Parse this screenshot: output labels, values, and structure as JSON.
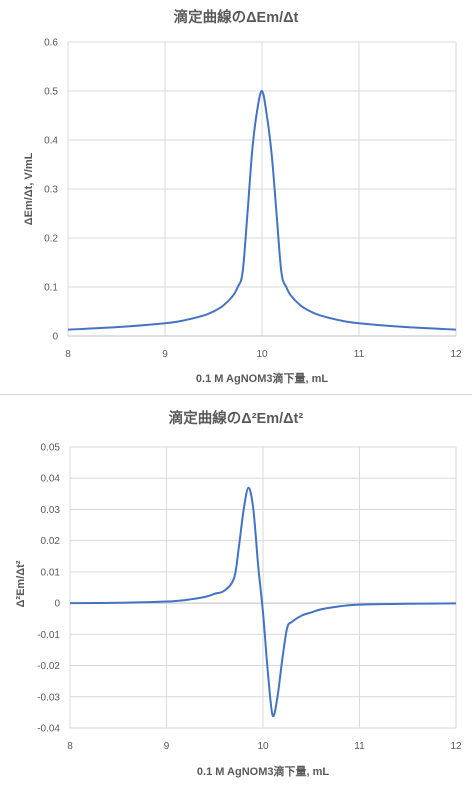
{
  "chart_data": [
    {
      "type": "line",
      "title": "滴定曲線のΔEm/Δt",
      "xlabel": "0.1 M AgNOM3滴下量, mL",
      "ylabel": "ΔEm/Δt, V/mL",
      "xlim": [
        8,
        12
      ],
      "ylim": [
        0,
        0.6
      ],
      "xticks": [
        "8",
        "9",
        "10",
        "11",
        "12"
      ],
      "yticks": [
        "0",
        "0.1",
        "0.2",
        "0.3",
        "0.4",
        "0.5",
        "0.6"
      ],
      "grid": true,
      "series": [
        {
          "color": "#4472c4",
          "x": [
            8.0,
            8.5,
            9.0,
            9.2,
            9.4,
            9.5,
            9.6,
            9.7,
            9.75,
            9.8,
            9.85,
            9.9,
            9.95,
            10.0,
            10.05,
            10.1,
            10.15,
            10.2,
            10.25,
            10.3,
            10.4,
            10.5,
            10.6,
            10.8,
            11.0,
            11.5,
            12.0
          ],
          "y": [
            0.013,
            0.018,
            0.026,
            0.032,
            0.042,
            0.05,
            0.062,
            0.082,
            0.1,
            0.13,
            0.25,
            0.38,
            0.46,
            0.5,
            0.45,
            0.37,
            0.25,
            0.13,
            0.1,
            0.082,
            0.062,
            0.05,
            0.042,
            0.032,
            0.026,
            0.018,
            0.013
          ]
        }
      ]
    },
    {
      "type": "line",
      "title": "滴定曲線のΔ²Em/Δt²",
      "xlabel": "0.1 M AgNOM3滴下量, mL",
      "ylabel": "Δ²Em/Δt²",
      "xlim": [
        8,
        12
      ],
      "ylim": [
        -0.04,
        0.05
      ],
      "xticks": [
        "8",
        "9",
        "10",
        "11",
        "12"
      ],
      "yticks": [
        "-0.04",
        "-0.03",
        "-0.02",
        "-0.01",
        "0",
        "0.01",
        "0.02",
        "0.03",
        "0.04",
        "0.05"
      ],
      "grid": true,
      "series": [
        {
          "color": "#4472c4",
          "x": [
            8.0,
            8.5,
            9.0,
            9.2,
            9.4,
            9.5,
            9.6,
            9.7,
            9.75,
            9.8,
            9.85,
            9.9,
            9.95,
            10.0,
            10.05,
            10.1,
            10.15,
            10.2,
            10.25,
            10.3,
            10.4,
            10.5,
            10.6,
            10.8,
            11.0,
            11.5,
            12.0
          ],
          "y": [
            0.0,
            0.0001,
            0.0005,
            0.001,
            0.002,
            0.003,
            0.004,
            0.008,
            0.018,
            0.03,
            0.037,
            0.03,
            0.012,
            -0.003,
            -0.022,
            -0.036,
            -0.03,
            -0.018,
            -0.008,
            -0.006,
            -0.004,
            -0.003,
            -0.002,
            -0.001,
            -0.0005,
            -0.0002,
            -0.0001
          ]
        }
      ]
    }
  ]
}
